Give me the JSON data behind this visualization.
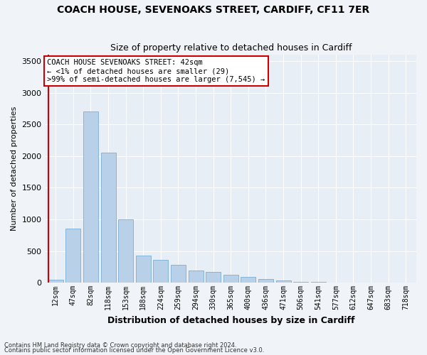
{
  "title": "COACH HOUSE, SEVENOAKS STREET, CARDIFF, CF11 7ER",
  "subtitle": "Size of property relative to detached houses in Cardiff",
  "xlabel": "Distribution of detached houses by size in Cardiff",
  "ylabel": "Number of detached properties",
  "categories": [
    "12sqm",
    "47sqm",
    "82sqm",
    "118sqm",
    "153sqm",
    "188sqm",
    "224sqm",
    "259sqm",
    "294sqm",
    "330sqm",
    "365sqm",
    "400sqm",
    "436sqm",
    "471sqm",
    "506sqm",
    "541sqm",
    "577sqm",
    "612sqm",
    "647sqm",
    "683sqm",
    "718sqm"
  ],
  "values": [
    50,
    850,
    2700,
    2050,
    1000,
    430,
    355,
    280,
    195,
    170,
    130,
    90,
    55,
    35,
    15,
    10,
    5,
    2,
    1,
    1,
    1
  ],
  "bar_color": "#b8d0e8",
  "bar_edge_color": "#7aadd4",
  "highlight_line_color": "#cc0000",
  "ylim": [
    0,
    3600
  ],
  "yticks": [
    0,
    500,
    1000,
    1500,
    2000,
    2500,
    3000,
    3500
  ],
  "annotation_title": "COACH HOUSE SEVENOAKS STREET: 42sqm",
  "annotation_line1": "← <1% of detached houses are smaller (29)",
  "annotation_line2": ">99% of semi-detached houses are larger (7,545) →",
  "annotation_box_color": "#ffffff",
  "annotation_box_edge": "#cc0000",
  "bg_color": "#e8eef5",
  "grid_color": "#ffffff",
  "fig_bg_color": "#f0f4f8",
  "footer1": "Contains HM Land Registry data © Crown copyright and database right 2024.",
  "footer2": "Contains public sector information licensed under the Open Government Licence v3.0."
}
